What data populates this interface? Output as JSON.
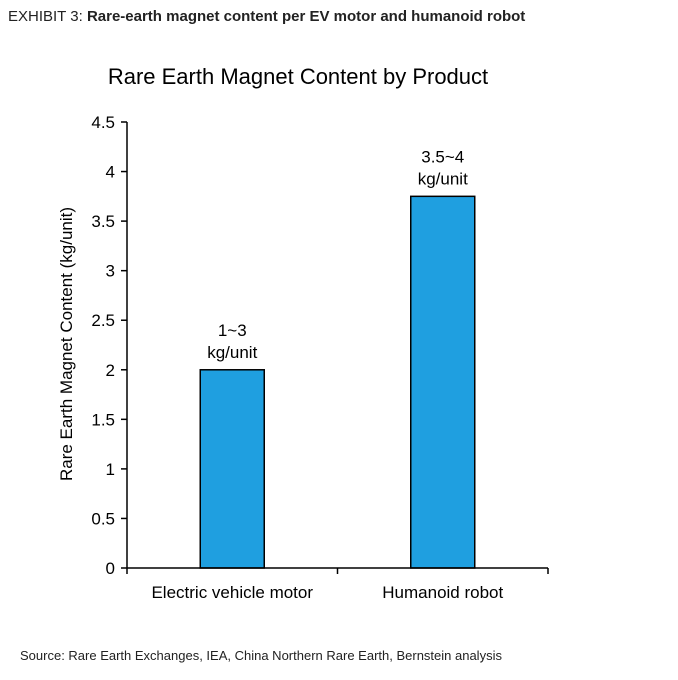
{
  "exhibit": {
    "label": "EXHIBIT 3:",
    "title": "Rare-earth magnet content per EV motor and humanoid robot"
  },
  "source": "Source: Rare Earth Exchanges, IEA, China Northern Rare Earth, Bernstein analysis",
  "colors": {
    "bar": "#1f9fe0",
    "bar_stroke": "#000000"
  },
  "chart_data": {
    "type": "bar",
    "title": "Rare Earth Magnet Content by Product",
    "ylabel": "Rare Earth Magnet Content (kg/unit)",
    "xlabel": "",
    "categories": [
      "Electric vehicle motor",
      "Humanoid robot"
    ],
    "values": [
      2,
      3.75
    ],
    "data_labels": [
      [
        "1~3",
        "kg/unit"
      ],
      [
        "3.5~4",
        "kg/unit"
      ]
    ],
    "ylim": [
      0,
      4.5
    ],
    "yticks": [
      "0",
      "0.5",
      "1",
      "1.5",
      "2",
      "2.5",
      "3",
      "3.5",
      "4",
      "4.5"
    ],
    "grid": false,
    "legend": "none"
  }
}
